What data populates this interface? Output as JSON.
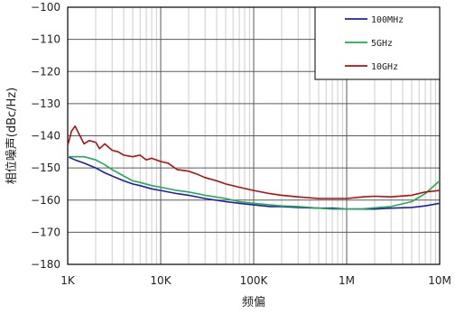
{
  "chart_data": {
    "type": "line",
    "title": "",
    "xlabel": "频偏",
    "ylabel": "相位噪声(dBc/Hz)",
    "x_scale": "log",
    "xlim": [
      1000,
      10000000
    ],
    "ylim": [
      -180,
      -100
    ],
    "x_ticks": [
      {
        "value": 1000,
        "label": "1K"
      },
      {
        "value": 10000,
        "label": "10K"
      },
      {
        "value": 100000,
        "label": "100K"
      },
      {
        "value": 1000000,
        "label": "1M"
      },
      {
        "value": 10000000,
        "label": "10M"
      }
    ],
    "y_ticks": [
      {
        "value": -100,
        "label": "−100"
      },
      {
        "value": -110,
        "label": "−110"
      },
      {
        "value": -120,
        "label": "−120"
      },
      {
        "value": -130,
        "label": "−130"
      },
      {
        "value": -140,
        "label": "−140"
      },
      {
        "value": -150,
        "label": "−150"
      },
      {
        "value": -160,
        "label": "−160"
      },
      {
        "value": -170,
        "label": "−170"
      },
      {
        "value": -180,
        "label": "−180"
      }
    ],
    "grid": true,
    "legend": "top-right",
    "series": [
      {
        "name": "100MHz",
        "color": "#1f1fa8",
        "x": [
          1000,
          1200,
          1500,
          2000,
          2500,
          3000,
          4000,
          5000,
          6000,
          8000,
          10000,
          15000,
          20000,
          30000,
          50000,
          70000,
          100000,
          150000,
          200000,
          300000,
          500000,
          700000,
          1000000,
          1500000,
          2000000,
          3000000,
          5000000,
          7000000,
          10000000
        ],
        "y": [
          -146.5,
          -147.5,
          -148.5,
          -150,
          -151.5,
          -152.5,
          -154,
          -155,
          -155.5,
          -156.5,
          -157,
          -158,
          -158.5,
          -159.5,
          -160.5,
          -161,
          -161.5,
          -162,
          -162,
          -162.3,
          -162.5,
          -162.5,
          -162.8,
          -162.8,
          -162.8,
          -162.5,
          -162.3,
          -161.8,
          -161
        ]
      },
      {
        "name": "5GHz",
        "color": "#22aa55",
        "x": [
          1000,
          1200,
          1500,
          2000,
          2500,
          3000,
          4000,
          5000,
          6000,
          8000,
          10000,
          15000,
          20000,
          30000,
          50000,
          70000,
          100000,
          150000,
          200000,
          300000,
          500000,
          700000,
          1000000,
          1500000,
          2000000,
          3000000,
          5000000,
          7000000,
          10000000
        ],
        "y": [
          -146.5,
          -146.5,
          -146.5,
          -147.5,
          -149,
          -150.5,
          -152.5,
          -154,
          -154.5,
          -155.5,
          -156,
          -157,
          -157.5,
          -158.5,
          -159.5,
          -160.5,
          -161,
          -161.5,
          -161.8,
          -162,
          -162.5,
          -162.8,
          -162.8,
          -162.7,
          -162.4,
          -162,
          -160.5,
          -158,
          -154
        ]
      },
      {
        "name": "10GHz",
        "color": "#b01010",
        "x": [
          1000,
          1100,
          1200,
          1300,
          1500,
          1700,
          2000,
          2200,
          2500,
          3000,
          3500,
          4000,
          5000,
          6000,
          7000,
          8000,
          10000,
          12000,
          15000,
          20000,
          25000,
          30000,
          40000,
          50000,
          70000,
          100000,
          150000,
          200000,
          300000,
          500000,
          700000,
          1000000,
          1500000,
          2000000,
          3000000,
          5000000,
          7000000,
          10000000
        ],
        "y": [
          -143,
          -138.5,
          -137,
          -139,
          -142.5,
          -141.5,
          -142,
          -144,
          -142.5,
          -144.5,
          -145,
          -146,
          -146.5,
          -146,
          -147.5,
          -147,
          -148,
          -148.5,
          -150.5,
          -151,
          -152,
          -153,
          -154,
          -155,
          -156,
          -157,
          -158,
          -158.5,
          -159,
          -159.5,
          -159.5,
          -159.5,
          -159,
          -158.8,
          -159,
          -158.5,
          -157.5,
          -157
        ]
      }
    ]
  }
}
